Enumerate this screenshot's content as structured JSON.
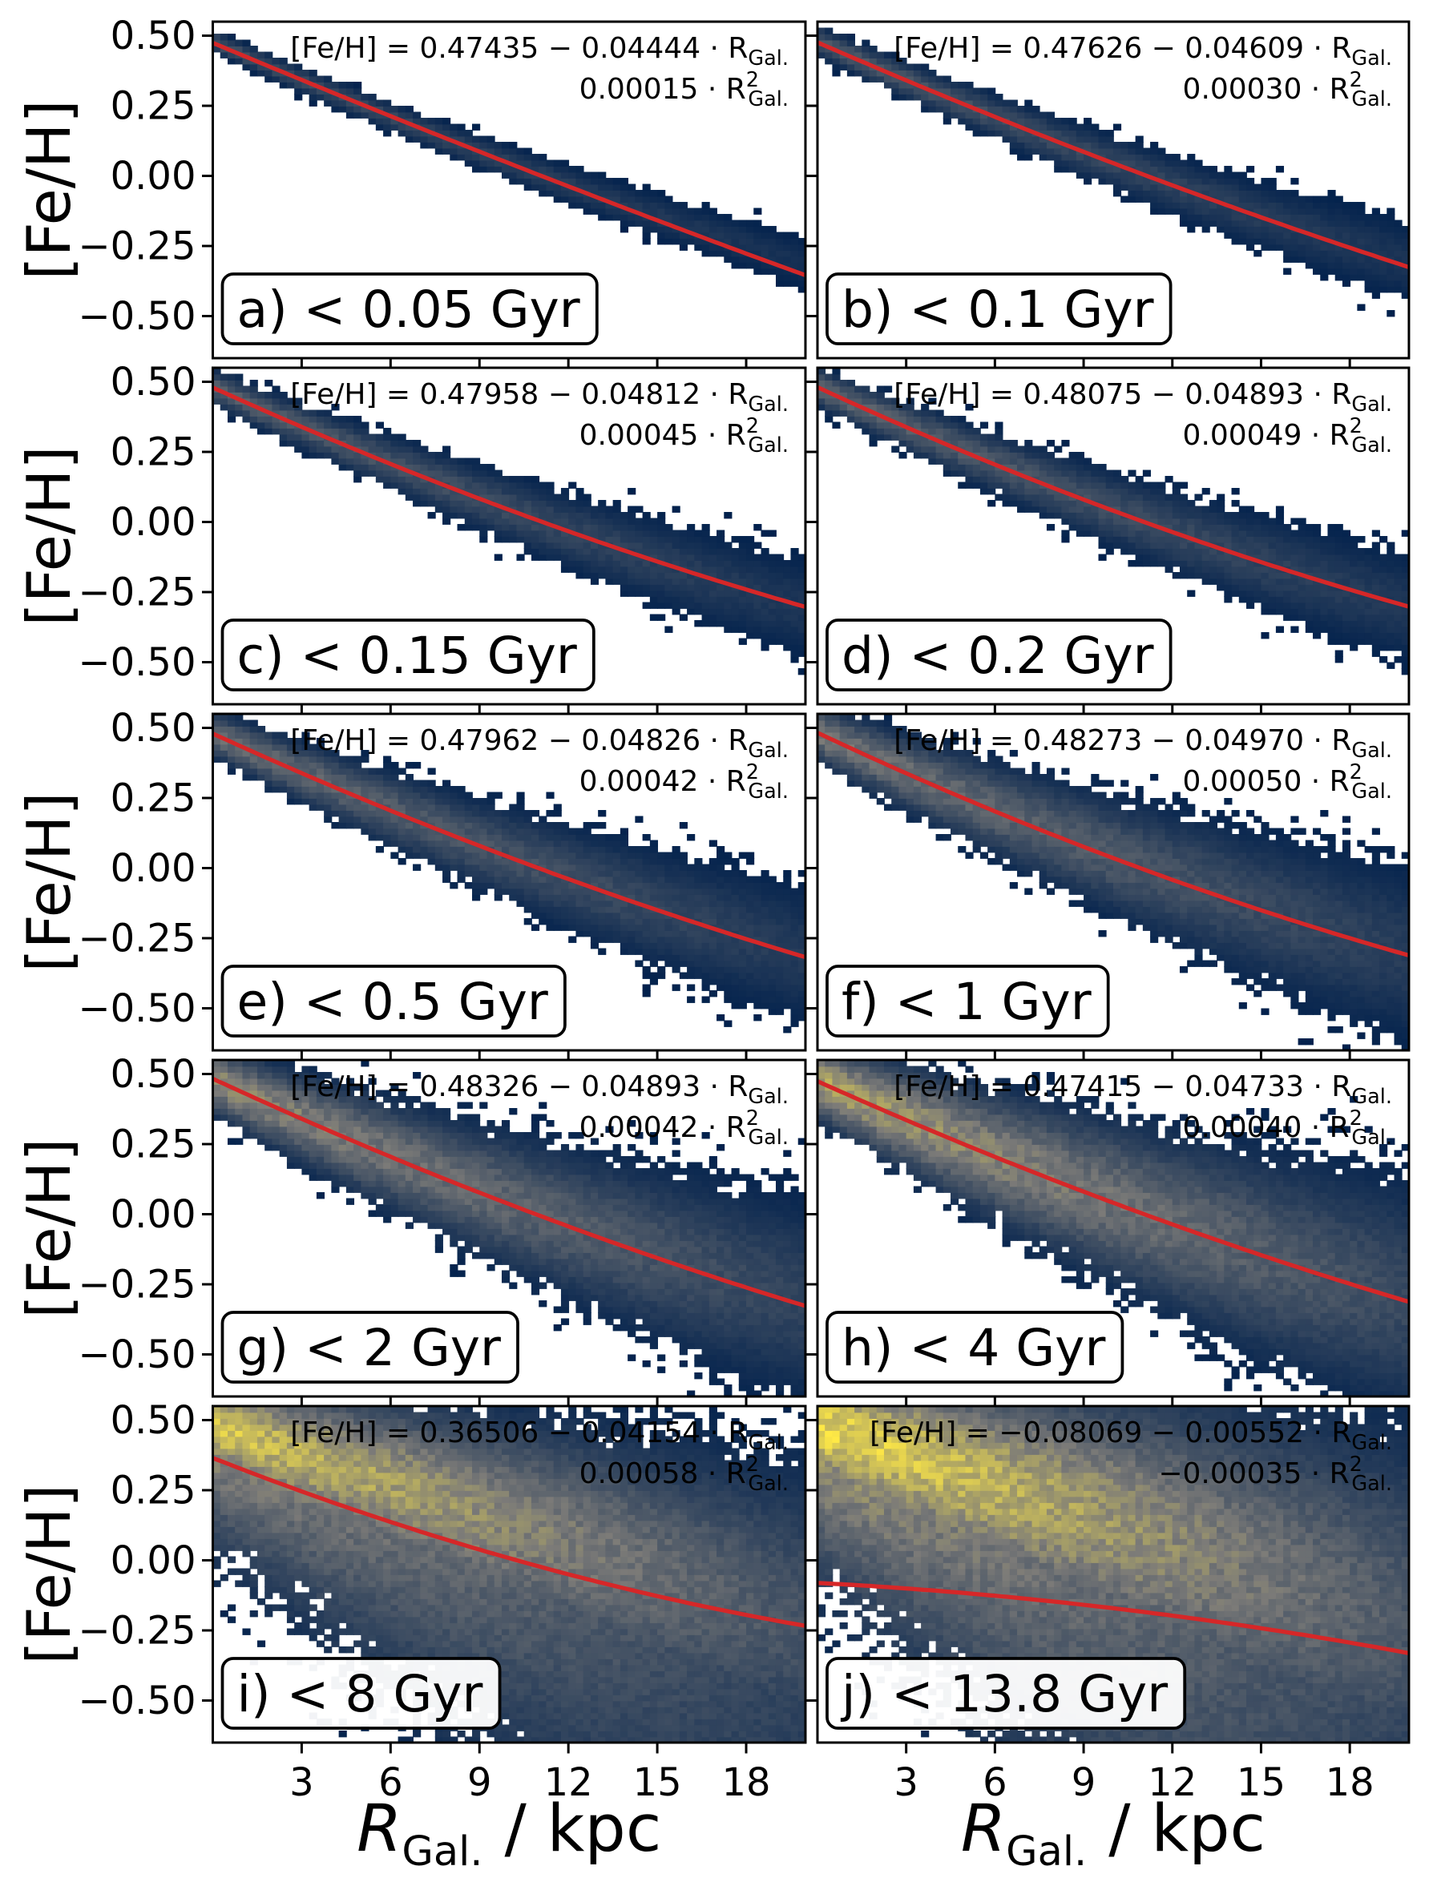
{
  "figure": {
    "ylabel": "[Fe/H]",
    "xlabel_main": "R",
    "xlabel_sub": "Gal.",
    "xlabel_unit": "/ kpc",
    "xticks": [
      3,
      6,
      9,
      12,
      15,
      18
    ],
    "xtick_labels": [
      "3",
      "6",
      "9",
      "12",
      "15",
      "18"
    ],
    "yticks": [
      0.5,
      0.25,
      0,
      -0.25,
      -0.5
    ],
    "ytick_labels": [
      "0.50",
      "0.25",
      "0.00",
      "−0.25",
      "−0.50"
    ]
  },
  "colors": {
    "fit_line": "#d62728",
    "cmap_low": "#00204c",
    "cmap_mid": "#7c7b78",
    "cmap_high": "#ffe945",
    "frame": "#000000"
  },
  "chart_data": [
    {
      "type": "heatmap",
      "panel": "a",
      "label": "a) < 0.05 Gyr",
      "age_max_gyr": 0.05,
      "xlim": [
        0,
        20
      ],
      "ylim": [
        -0.65,
        0.55
      ],
      "fit": {
        "c0": 0.47435,
        "c1": -0.04444,
        "c2": 0.00015
      },
      "equation_line1": "[Fe/H] = 0.47435 − 0.04444 · R",
      "equation_line2": "0.00015 · R",
      "density": {
        "scatter": 0.02,
        "level": 0.25
      }
    },
    {
      "type": "heatmap",
      "panel": "b",
      "label": "b) < 0.1 Gyr",
      "age_max_gyr": 0.1,
      "xlim": [
        0,
        20
      ],
      "ylim": [
        -0.65,
        0.55
      ],
      "fit": {
        "c0": 0.47626,
        "c1": -0.04609,
        "c2": 0.0003
      },
      "equation_line1": "[Fe/H] = 0.47626 − 0.04609 · R",
      "equation_line2": "0.00030 · R",
      "density": {
        "scatter": 0.035,
        "level": 0.3
      }
    },
    {
      "type": "heatmap",
      "panel": "c",
      "label": "c) < 0.15 Gyr",
      "age_max_gyr": 0.15,
      "xlim": [
        0,
        20
      ],
      "ylim": [
        -0.65,
        0.55
      ],
      "fit": {
        "c0": 0.47958,
        "c1": -0.04812,
        "c2": 0.00045
      },
      "equation_line1": "[Fe/H] = 0.47958 − 0.04812 · R",
      "equation_line2": "0.00045 · R",
      "density": {
        "scatter": 0.045,
        "level": 0.33
      }
    },
    {
      "type": "heatmap",
      "panel": "d",
      "label": "d) < 0.2 Gyr",
      "age_max_gyr": 0.2,
      "xlim": [
        0,
        20
      ],
      "ylim": [
        -0.65,
        0.55
      ],
      "fit": {
        "c0": 0.48075,
        "c1": -0.04893,
        "c2": 0.00049
      },
      "equation_line1": "[Fe/H] = 0.48075 − 0.04893 · R",
      "equation_line2": "0.00049 · R",
      "density": {
        "scatter": 0.05,
        "level": 0.36
      }
    },
    {
      "type": "heatmap",
      "panel": "e",
      "label": "e) < 0.5 Gyr",
      "age_max_gyr": 0.5,
      "xlim": [
        0,
        20
      ],
      "ylim": [
        -0.65,
        0.55
      ],
      "fit": {
        "c0": 0.47962,
        "c1": -0.04826,
        "c2": 0.00042
      },
      "equation_line1": "[Fe/H] = 0.47962 − 0.04826 · R",
      "equation_line2": "0.00042 · R",
      "density": {
        "scatter": 0.065,
        "level": 0.4
      }
    },
    {
      "type": "heatmap",
      "panel": "f",
      "label": "f) < 1 Gyr",
      "age_max_gyr": 1,
      "xlim": [
        0,
        20
      ],
      "ylim": [
        -0.65,
        0.55
      ],
      "fit": {
        "c0": 0.48273,
        "c1": -0.0497,
        "c2": 0.0005
      },
      "equation_line1": "[Fe/H] = 0.48273 − 0.04970 · R",
      "equation_line2": "0.00050 · R",
      "density": {
        "scatter": 0.085,
        "level": 0.45
      }
    },
    {
      "type": "heatmap",
      "panel": "g",
      "label": "g) < 2 Gyr",
      "age_max_gyr": 2,
      "xlim": [
        0,
        20
      ],
      "ylim": [
        -0.65,
        0.55
      ],
      "fit": {
        "c0": 0.48326,
        "c1": -0.04893,
        "c2": 0.00042
      },
      "equation_line1": "[Fe/H] = 0.48326 − 0.04893 · R",
      "equation_line2": "0.00042 · R",
      "density": {
        "scatter": 0.1,
        "level": 0.55
      }
    },
    {
      "type": "heatmap",
      "panel": "h",
      "label": "h) < 4 Gyr",
      "age_max_gyr": 4,
      "xlim": [
        0,
        20
      ],
      "ylim": [
        -0.65,
        0.55
      ],
      "fit": {
        "c0": 0.47415,
        "c1": -0.04733,
        "c2": 0.0004
      },
      "equation_line1": "[Fe/H] = 0.47415 − 0.04733 · R",
      "equation_line2": "0.00040 · R",
      "density": {
        "scatter": 0.12,
        "level": 0.65
      }
    },
    {
      "type": "heatmap",
      "panel": "i",
      "label": "i) < 8 Gyr",
      "age_max_gyr": 8,
      "xlim": [
        0,
        20
      ],
      "ylim": [
        -0.65,
        0.55
      ],
      "fit": {
        "c0": 0.36506,
        "c1": -0.04154,
        "c2": 0.00058
      },
      "equation_line1": "[Fe/H] = 0.36506 − 0.04154 · R",
      "equation_line2": "0.00058 · R",
      "density": {
        "scatter": 0.16,
        "level": 0.8
      }
    },
    {
      "type": "heatmap",
      "panel": "j",
      "label": "j) < 13.8 Gyr",
      "age_max_gyr": 13.8,
      "xlim": [
        0,
        20
      ],
      "ylim": [
        -0.65,
        0.55
      ],
      "fit": {
        "c0": -0.08069,
        "c1": -0.00552,
        "c2": -0.00035
      },
      "equation_line1": "[Fe/H] = −0.08069 − 0.00552 · R",
      "equation_line2": "−0.00035 · R",
      "density": {
        "scatter": 0.2,
        "level": 0.9
      }
    }
  ]
}
